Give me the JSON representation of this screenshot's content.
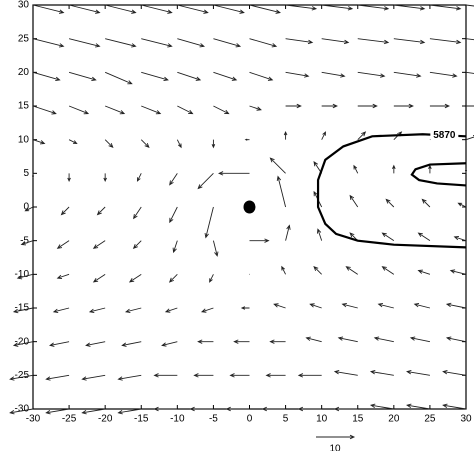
{
  "chart_data": {
    "type": "quiver",
    "xlim": [
      -30,
      30
    ],
    "ylim": [
      -30,
      30
    ],
    "xticks": [
      -30,
      -25,
      -20,
      -15,
      -10,
      -5,
      0,
      5,
      10,
      15,
      20,
      25,
      30
    ],
    "yticks": [
      -30,
      -25,
      -20,
      -15,
      -10,
      -5,
      0,
      5,
      10,
      15,
      20,
      25,
      30
    ],
    "x": [
      -30,
      -25,
      -20,
      -15,
      -10,
      -5,
      0,
      5,
      10,
      15,
      20,
      25,
      30
    ],
    "y": [
      30,
      25,
      20,
      15,
      10,
      5,
      0,
      -5,
      -10,
      -15,
      -20,
      -25,
      -30
    ],
    "u": [
      [
        8,
        8,
        8,
        8,
        8,
        8,
        8,
        8,
        8,
        8,
        8,
        8,
        8
      ],
      [
        8,
        8,
        8,
        8,
        7,
        7,
        7,
        7,
        7,
        8,
        8,
        8,
        8
      ],
      [
        7,
        7,
        7,
        7,
        6,
        6,
        6,
        6,
        6,
        7,
        7,
        7,
        7
      ],
      [
        6,
        5,
        5,
        5,
        4,
        4,
        3,
        4,
        4,
        5,
        5,
        5,
        6
      ],
      [
        3,
        2,
        2,
        2,
        1,
        0,
        -1,
        0,
        1,
        2,
        2,
        2,
        3
      ],
      [
        0,
        0,
        0,
        -1,
        -2,
        -4,
        -8,
        -4,
        -2,
        -1,
        0,
        0,
        0
      ],
      [
        -2,
        -2,
        -2,
        -2,
        -2,
        -2,
        0,
        -2,
        -2,
        -2,
        -2,
        -2,
        -2
      ],
      [
        -3,
        -3,
        -3,
        -2,
        -1,
        1,
        5,
        1,
        -1,
        -2,
        -3,
        -3,
        -3
      ],
      [
        -4,
        -3,
        -3,
        -3,
        -2,
        -1,
        0,
        -1,
        -2,
        -3,
        -3,
        -3,
        -4
      ],
      [
        -5,
        -4,
        -4,
        -4,
        -3,
        -3,
        -2,
        -3,
        -3,
        -4,
        -4,
        -4,
        -5
      ],
      [
        -5,
        -5,
        -5,
        -5,
        -4,
        -4,
        -4,
        -4,
        -4,
        -5,
        -5,
        -5,
        -5
      ],
      [
        -6,
        -6,
        -6,
        -6,
        -6,
        -5,
        -5,
        -5,
        -6,
        -6,
        -6,
        -6,
        -6
      ],
      [
        -6,
        -6,
        -6,
        -6,
        -6,
        -6,
        -6,
        -6,
        -6,
        -6,
        -6,
        -6,
        -6
      ]
    ],
    "v": [
      [
        -2,
        -2,
        -2,
        -2,
        -2,
        -2,
        -2,
        -1,
        -1,
        -1,
        -1,
        -1,
        -1
      ],
      [
        -2,
        -2,
        -2,
        -2,
        -2,
        -2,
        -2,
        -1,
        -1,
        -1,
        -1,
        -1,
        -1
      ],
      [
        -2,
        -2,
        -3,
        -2,
        -2,
        -2,
        -2,
        -1,
        -1,
        -1,
        -1,
        -1,
        -1
      ],
      [
        -2,
        -2,
        -2,
        -2,
        -2,
        -2,
        -1,
        0,
        0,
        0,
        0,
        0,
        0
      ],
      [
        -1,
        -1,
        -2,
        -2,
        -2,
        -2,
        0,
        2,
        2,
        2,
        2,
        1,
        1
      ],
      [
        -1,
        -2,
        -2,
        -2,
        -3,
        -4,
        0,
        4,
        3,
        2,
        2,
        2,
        1
      ],
      [
        -1,
        -2,
        -2,
        -3,
        -4,
        -8,
        0,
        8,
        4,
        3,
        2,
        2,
        1
      ],
      [
        -1,
        -2,
        -2,
        -2,
        -3,
        -4,
        0,
        4,
        3,
        2,
        2,
        2,
        1
      ],
      [
        -1,
        -1,
        -2,
        -2,
        -2,
        -2,
        0,
        2,
        2,
        2,
        2,
        1,
        1
      ],
      [
        -1,
        -1,
        -1,
        -1,
        -1,
        -1,
        0,
        1,
        1,
        1,
        1,
        1,
        1
      ],
      [
        -1,
        -1,
        -1,
        -1,
        -1,
        0,
        0,
        0,
        1,
        1,
        1,
        1,
        1
      ],
      [
        -1,
        -1,
        -1,
        -1,
        0,
        0,
        0,
        0,
        0,
        1,
        1,
        1,
        1
      ],
      [
        -1,
        -1,
        -1,
        -1,
        0,
        0,
        0,
        0,
        0,
        0,
        1,
        1,
        1
      ]
    ],
    "contours": [
      {
        "label": "5870",
        "x": [
          30,
          24,
          17,
          13,
          10.5,
          9.5,
          9.5,
          10.5,
          12,
          15,
          20,
          30
        ],
        "y": [
          10.5,
          10.8,
          10.5,
          9,
          7,
          4,
          0,
          -2.5,
          -4,
          -5,
          -5.6,
          -6
        ]
      },
      {
        "x": [
          30,
          25,
          23,
          22.5,
          23.5,
          26,
          30
        ],
        "y": [
          6.5,
          6.3,
          5.6,
          4.8,
          4,
          3.5,
          3.2
        ]
      }
    ],
    "center": {
      "x": 0,
      "y": 0
    },
    "reference_vector": 10
  }
}
